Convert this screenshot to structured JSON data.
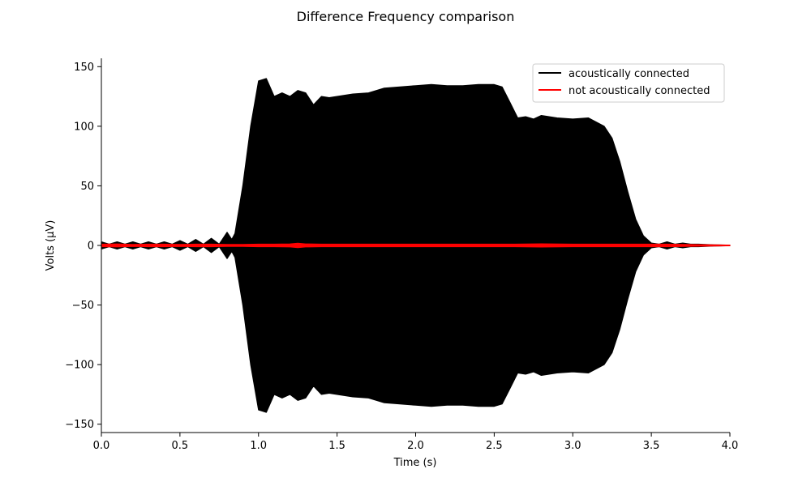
{
  "chart_data": {
    "type": "line",
    "title": "Difference Frequency comparison",
    "xlabel": "Time (s)",
    "ylabel": "Volts (µV)",
    "xlim": [
      0.0,
      4.0
    ],
    "ylim": [
      -157,
      157
    ],
    "xticks": [
      0.0,
      0.5,
      1.0,
      1.5,
      2.0,
      2.5,
      3.0,
      3.5,
      4.0
    ],
    "xtick_labels": [
      "0.0",
      "0.5",
      "1.0",
      "1.5",
      "2.0",
      "2.5",
      "3.0",
      "3.5",
      "4.0"
    ],
    "yticks": [
      150,
      100,
      50,
      0,
      -50,
      -100,
      -150
    ],
    "ytick_labels": [
      "150",
      "100",
      "50",
      "0",
      "−50",
      "−100",
      "−150"
    ],
    "grid": false,
    "legend_position": "top-right",
    "series": [
      {
        "name": "acoustically connected",
        "color": "#000000",
        "envelope": {
          "x": [
            0.0,
            0.05,
            0.1,
            0.15,
            0.2,
            0.25,
            0.3,
            0.35,
            0.4,
            0.45,
            0.5,
            0.55,
            0.6,
            0.65,
            0.7,
            0.75,
            0.8,
            0.83,
            0.85,
            0.9,
            0.95,
            1.0,
            1.05,
            1.1,
            1.15,
            1.2,
            1.25,
            1.3,
            1.35,
            1.4,
            1.45,
            1.5,
            1.6,
            1.7,
            1.8,
            1.9,
            2.0,
            2.1,
            2.2,
            2.3,
            2.4,
            2.5,
            2.55,
            2.6,
            2.65,
            2.7,
            2.75,
            2.8,
            2.85,
            2.9,
            3.0,
            3.1,
            3.2,
            3.25,
            3.3,
            3.35,
            3.4,
            3.45,
            3.5,
            3.55,
            3.6,
            3.65,
            3.7,
            3.75,
            3.8,
            3.9,
            4.0
          ],
          "y": [
            3,
            1,
            3,
            1,
            3,
            1,
            3,
            1,
            3,
            1,
            4,
            1,
            5,
            1,
            6,
            1,
            11,
            5,
            10,
            50,
            100,
            138,
            140,
            125,
            128,
            125,
            130,
            128,
            118,
            125,
            124,
            125,
            127,
            128,
            132,
            133,
            134,
            135,
            134,
            134,
            135,
            135,
            133,
            120,
            107,
            108,
            106,
            109,
            108,
            107,
            106,
            107,
            100,
            90,
            70,
            45,
            22,
            8,
            2,
            1,
            3,
            1,
            2,
            1,
            1,
            0.5,
            0.2
          ]
        }
      },
      {
        "name": "not acoustically connected",
        "color": "#ff0000",
        "envelope": {
          "x": [
            0.0,
            0.1,
            0.2,
            0.3,
            0.4,
            0.5,
            0.6,
            0.7,
            0.8,
            0.9,
            1.0,
            1.1,
            1.2,
            1.25,
            1.3,
            1.4,
            1.6,
            1.8,
            2.0,
            2.2,
            2.4,
            2.6,
            2.8,
            3.0,
            3.2,
            3.4,
            3.6,
            3.8,
            4.0
          ],
          "y": [
            1,
            1.2,
            0.8,
            1,
            1,
            0.8,
            1,
            1,
            0.8,
            0.8,
            1,
            1,
            1.2,
            1.8,
            1.2,
            1,
            1,
            1,
            1,
            1,
            1,
            1,
            1.3,
            1,
            1,
            1,
            1,
            0.6,
            0.3
          ]
        }
      }
    ]
  }
}
